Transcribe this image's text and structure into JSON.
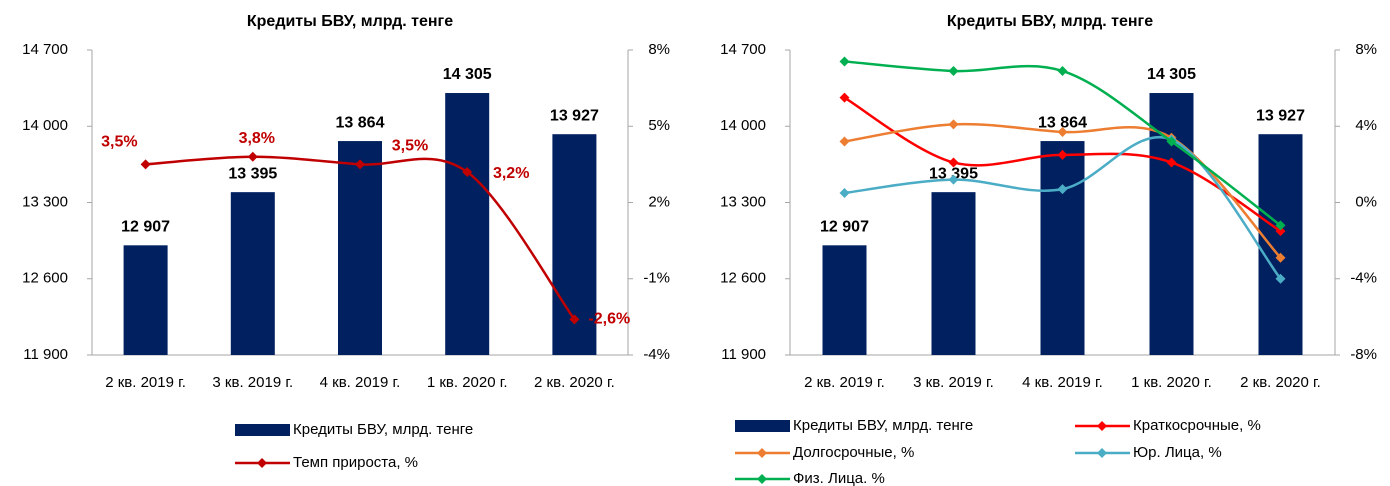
{
  "chart_data": [
    {
      "type": "bar",
      "title": "Кредиты БВУ, млрд. тенге",
      "categories": [
        "2 кв. 2019 г.",
        "3 кв. 2019 г.",
        "4 кв. 2019 г.",
        "1 кв. 2020 г.",
        "2 кв. 2020 г."
      ],
      "ylim": [
        11900,
        14700
      ],
      "yticks": [
        {
          "value": 11900,
          "label": "11 900"
        },
        {
          "value": 12600,
          "label": "12 600"
        },
        {
          "value": 13300,
          "label": "13 300"
        },
        {
          "value": 14000,
          "label": "14 000"
        },
        {
          "value": 14700,
          "label": "14 700"
        }
      ],
      "y2lim": [
        -4,
        8
      ],
      "y2ticks": [
        {
          "value": -4,
          "label": "-4%"
        },
        {
          "value": -1,
          "label": "-1%"
        },
        {
          "value": 2,
          "label": "2%"
        },
        {
          "value": 5,
          "label": "5%"
        },
        {
          "value": 8,
          "label": "8%"
        }
      ],
      "series": [
        {
          "name": "Кредиты БВУ, млрд. тенге",
          "type": "bar",
          "color": "#002060",
          "values": [
            12907,
            13395,
            13864,
            14305,
            13927
          ],
          "value_labels": [
            "12 907",
            "13 395",
            "13 864",
            "14 305",
            "13 927"
          ]
        },
        {
          "name": "Темп прироста, %",
          "type": "line",
          "axis": "y2",
          "color": "#c00000",
          "values": [
            3.5,
            3.8,
            3.5,
            3.2,
            -2.6
          ],
          "value_labels": [
            "3,5%",
            "3,8%",
            "3,5%",
            "3,2%",
            "-2,6%"
          ]
        }
      ]
    },
    {
      "type": "bar",
      "title": "Кредиты БВУ, млрд. тенге",
      "categories": [
        "2 кв. 2019 г.",
        "3 кв. 2019 г.",
        "4 кв. 2019 г.",
        "1 кв. 2020 г.",
        "2 кв. 2020 г."
      ],
      "ylim": [
        11900,
        14700
      ],
      "yticks": [
        {
          "value": 11900,
          "label": "11 900"
        },
        {
          "value": 12600,
          "label": "12 600"
        },
        {
          "value": 13300,
          "label": "13 300"
        },
        {
          "value": 14000,
          "label": "14 000"
        },
        {
          "value": 14700,
          "label": "14 700"
        }
      ],
      "y2lim": [
        -8,
        8
      ],
      "y2ticks": [
        {
          "value": -8,
          "label": "-8%"
        },
        {
          "value": -4,
          "label": "-4%"
        },
        {
          "value": 0,
          "label": "0%"
        },
        {
          "value": 4,
          "label": "4%"
        },
        {
          "value": 8,
          "label": "8%"
        }
      ],
      "series": [
        {
          "name": "Кредиты БВУ, млрд. тенге",
          "type": "bar",
          "color": "#002060",
          "values": [
            12907,
            13395,
            13864,
            14305,
            13927
          ],
          "value_labels": [
            "12 907",
            "13 395",
            "13 864",
            "14 305",
            "13 927"
          ]
        },
        {
          "name": "Краткосрочные, %",
          "type": "line",
          "axis": "y2",
          "color": "#ff0000",
          "values": [
            5.5,
            2.1,
            2.5,
            2.1,
            -1.5
          ]
        },
        {
          "name": "Долгосрочные, %",
          "type": "line",
          "axis": "y2",
          "color": "#ed7d31",
          "values": [
            3.2,
            4.1,
            3.7,
            3.4,
            -2.9
          ]
        },
        {
          "name": "Юр. Лица, %",
          "type": "line",
          "axis": "y2",
          "color": "#4bacc6",
          "values": [
            0.5,
            1.2,
            0.7,
            3.3,
            -4.0
          ]
        },
        {
          "name": "Физ. Лица. %",
          "type": "line",
          "axis": "y2",
          "color": "#00b050",
          "values": [
            7.4,
            6.9,
            6.9,
            3.2,
            -1.2
          ]
        }
      ]
    }
  ]
}
